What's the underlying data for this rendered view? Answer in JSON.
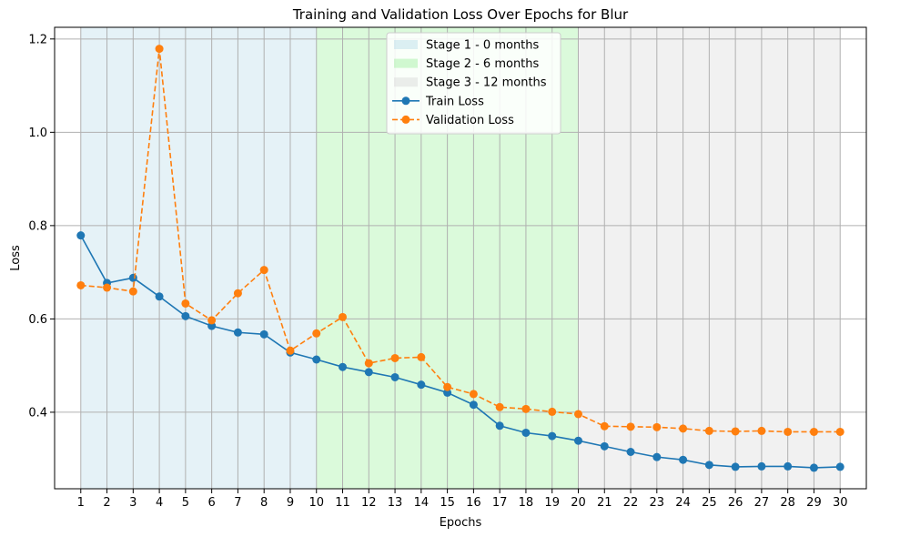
{
  "chart_data": {
    "type": "line",
    "title": "Training and Validation Loss Over Epochs for Blur",
    "xlabel": "Epochs",
    "ylabel": "Loss",
    "x": [
      1,
      2,
      3,
      4,
      5,
      6,
      7,
      8,
      9,
      10,
      11,
      12,
      13,
      14,
      15,
      16,
      17,
      18,
      19,
      20,
      21,
      22,
      23,
      24,
      25,
      26,
      27,
      28,
      29,
      30
    ],
    "xlim": [
      -0.0,
      31.0
    ],
    "ylim": [
      0.236,
      1.225
    ],
    "yticks": [
      0.4,
      0.6,
      0.8,
      1.0,
      1.2
    ],
    "yticklabels": [
      "0.4",
      "0.6",
      "0.8",
      "1.0",
      "1.2"
    ],
    "grid": true,
    "legend_position": "top-center",
    "stages": [
      {
        "name": "Stage 1 - 0 months",
        "start": 1,
        "end": 10,
        "color": "#add8e6"
      },
      {
        "name": "Stage 2 - 6 months",
        "start": 10,
        "end": 20,
        "color": "#90ee90"
      },
      {
        "name": "Stage 3 - 12 months",
        "start": 20,
        "end": 30,
        "color": "#d3d3d3"
      }
    ],
    "series": [
      {
        "name": "Train Loss",
        "color": "#1f77b4",
        "dashed": false,
        "values": [
          0.779,
          0.677,
          0.688,
          0.648,
          0.606,
          0.585,
          0.571,
          0.567,
          0.528,
          0.513,
          0.497,
          0.486,
          0.475,
          0.459,
          0.442,
          0.416,
          0.371,
          0.356,
          0.349,
          0.339,
          0.327,
          0.315,
          0.304,
          0.298,
          0.287,
          0.283,
          0.284,
          0.284,
          0.281,
          0.283
        ]
      },
      {
        "name": "Validation Loss",
        "color": "#ff7f0e",
        "dashed": true,
        "values": [
          0.672,
          0.667,
          0.659,
          1.179,
          0.633,
          0.597,
          0.655,
          0.705,
          0.532,
          0.569,
          0.604,
          0.505,
          0.516,
          0.518,
          0.454,
          0.439,
          0.411,
          0.407,
          0.401,
          0.396,
          0.37,
          0.369,
          0.368,
          0.365,
          0.36,
          0.359,
          0.36,
          0.358,
          0.358,
          0.358
        ]
      }
    ]
  }
}
